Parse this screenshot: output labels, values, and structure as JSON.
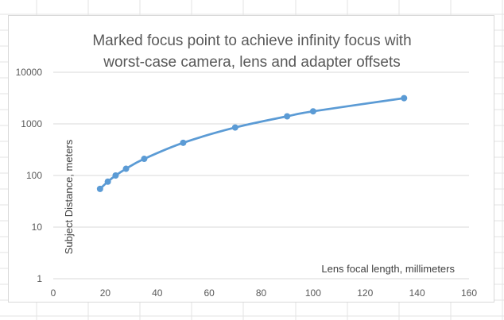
{
  "chart_data": {
    "type": "scatter",
    "title_lines": [
      "Marked focus point to achieve infinity focus with",
      "worst-case camera, lens and adapter offsets"
    ],
    "xlabel": "Lens focal length, millimeters",
    "ylabel": "Subject Distance, meters",
    "xlim": [
      0,
      160
    ],
    "ylim": [
      1,
      10000
    ],
    "y_scale": "log",
    "x_ticks": [
      0,
      20,
      40,
      60,
      80,
      100,
      120,
      140,
      160
    ],
    "y_ticks": [
      1,
      10,
      100,
      1000,
      10000
    ],
    "y_tick_labels": [
      "1",
      "10",
      "100",
      "1000",
      "10000"
    ],
    "grid": "horizontal",
    "line_style": "smooth",
    "series_color": "#5b9bd5",
    "x": [
      18,
      21,
      24,
      28,
      35,
      50,
      70,
      90,
      100,
      135
    ],
    "y": [
      55,
      76,
      100,
      135,
      210,
      430,
      850,
      1400,
      1750,
      3150
    ]
  }
}
